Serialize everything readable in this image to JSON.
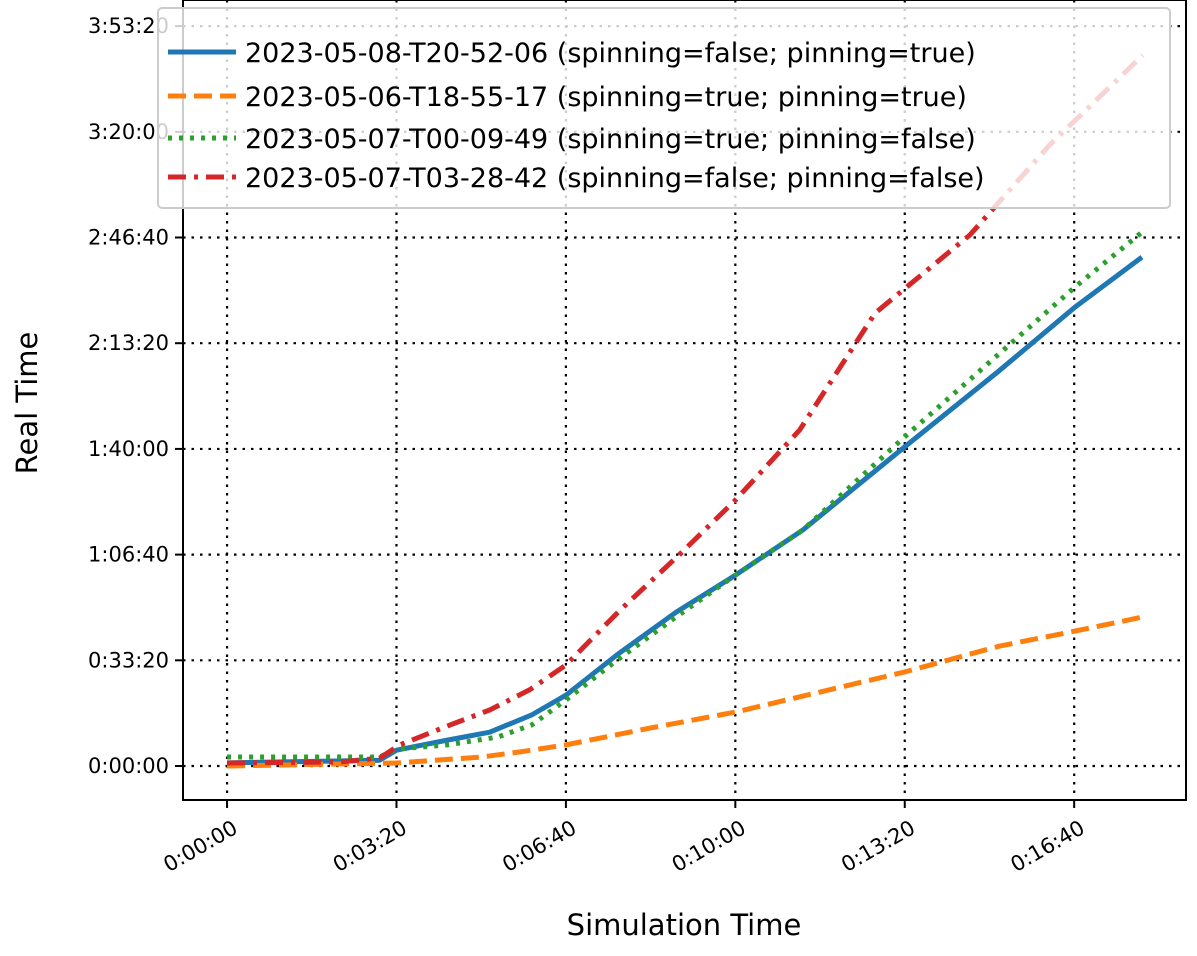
{
  "chart_data": {
    "type": "line",
    "title": "",
    "xlabel": "Simulation Time",
    "ylabel": "Real Time",
    "xlim": [
      -52,
      1132
    ],
    "ylim": [
      -643,
      14494
    ],
    "x_ticks": [
      0,
      200,
      400,
      600,
      800,
      1000
    ],
    "x_tick_labels": [
      "0:00:00",
      "0:03:20",
      "0:06:40",
      "0:10:00",
      "0:13:20",
      "0:16:40"
    ],
    "y_ticks": [
      0,
      2000,
      4000,
      6000,
      8000,
      10000,
      12000,
      14000
    ],
    "y_tick_labels": [
      "0:00:00",
      "0:33:20",
      "1:06:40",
      "1:40:00",
      "2:13:20",
      "2:46:40",
      "3:20:00",
      "3:53:20"
    ],
    "grid": true,
    "legend_position": "top",
    "series": [
      {
        "name": "2023-05-08-T20-52-06 (spinning=false; pinning=true)",
        "color": "#1f77b4",
        "style": "solid",
        "x": [
          0,
          180,
          200,
          260,
          310,
          360,
          400,
          460,
          530,
          600,
          680,
          800,
          910,
          1000,
          1080
        ],
        "y": [
          60,
          110,
          300,
          490,
          640,
          970,
          1340,
          2100,
          2910,
          3610,
          4470,
          6040,
          7460,
          8670,
          9630
        ]
      },
      {
        "name": "2023-05-06-T18-55-17 (spinning=true; pinning=true)",
        "color": "#ff7f0e",
        "style": "dashed",
        "x": [
          0,
          200,
          300,
          345,
          400,
          500,
          600,
          700,
          800,
          912,
          1000,
          1081
        ],
        "y": [
          0,
          57,
          170,
          265,
          400,
          720,
          1020,
          1400,
          1780,
          2270,
          2550,
          2820
        ]
      },
      {
        "name": "2023-05-07-T00-09-49 (spinning=true; pinning=false)",
        "color": "#2ca02c",
        "style": "dotted",
        "x": [
          0,
          180,
          200,
          260,
          320,
          360,
          400,
          460,
          530,
          600,
          680,
          800,
          910,
          1000,
          1080
        ],
        "y": [
          170,
          170,
          320,
          400,
          550,
          780,
          1250,
          2000,
          2820,
          3610,
          4470,
          6230,
          7780,
          9050,
          10100
        ]
      },
      {
        "name": "2023-05-07-T03-28-42 (spinning=false; pinning=false)",
        "color": "#d62728",
        "style": "dashdot",
        "x": [
          0,
          133,
          180,
          204,
          263,
          310,
          357,
          400,
          464,
          534,
          600,
          676,
          765,
          877,
          971,
          1081
        ],
        "y": [
          57,
          76,
          150,
          400,
          775,
          1060,
          1440,
          1910,
          2950,
          4000,
          5030,
          6360,
          8570,
          10050,
          11750,
          13450
        ]
      }
    ]
  }
}
